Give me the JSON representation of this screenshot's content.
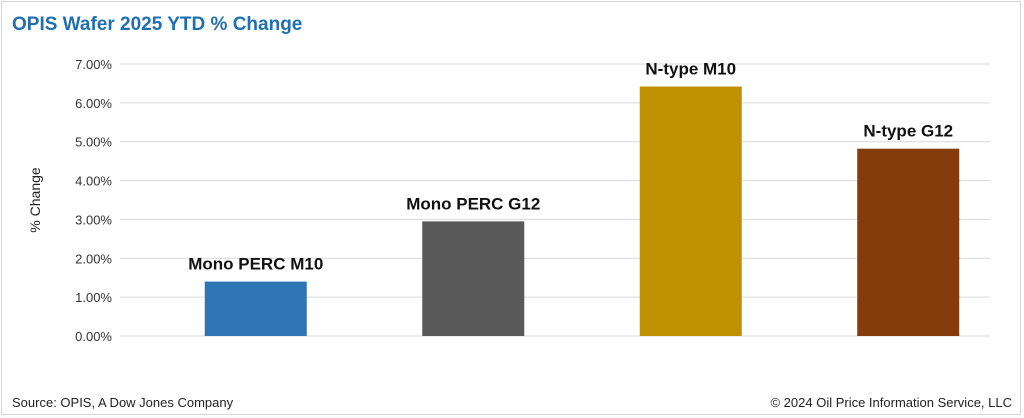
{
  "chart_data": {
    "type": "bar",
    "title": "OPIS Wafer 2025 YTD % Change",
    "ylabel": "% Change",
    "xlabel": "",
    "categories": [
      "Mono PERC M10",
      "Mono PERC G12",
      "N-type M10",
      "N-type G12"
    ],
    "values": [
      1.4,
      2.95,
      6.42,
      4.82
    ],
    "colors": [
      "#2e75b6",
      "#595959",
      "#bf9000",
      "#843c0c"
    ],
    "ylim": [
      0,
      7
    ],
    "yticks": [
      "0.00%",
      "1.00%",
      "2.00%",
      "3.00%",
      "4.00%",
      "5.00%",
      "6.00%",
      "7.00%"
    ],
    "grid": true,
    "legend": "none"
  },
  "footer": {
    "source": "Source: OPIS, A Dow Jones Company",
    "copyright": "© 2024 Oil Price Information Service, LLC"
  }
}
